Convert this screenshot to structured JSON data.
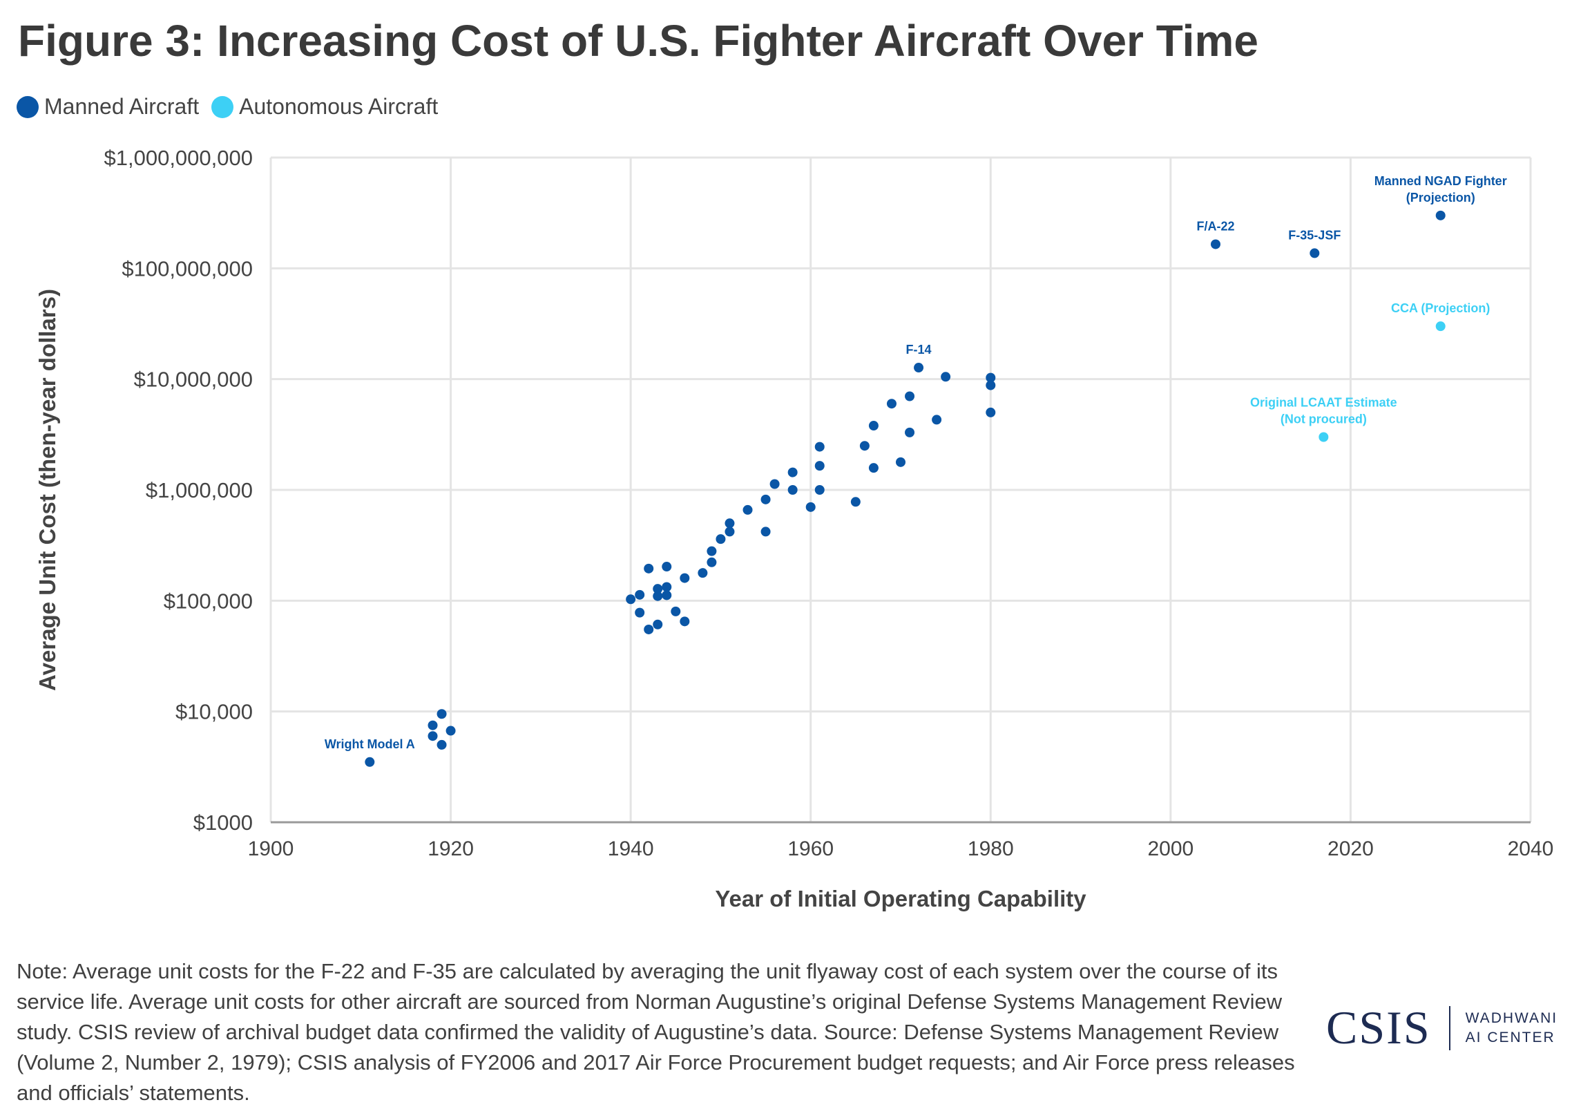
{
  "title": "Figure 3: Increasing Cost of U.S. Fighter Aircraft Over Time",
  "legend": [
    {
      "label": "Manned Aircraft",
      "color": "#0a56a6"
    },
    {
      "label": "Autonomous Aircraft",
      "color": "#3dd0f5"
    }
  ],
  "note": "Note: Average unit costs for the F-22 and F-35 are calculated by averaging the unit flyaway cost of each system over the course of its service life. Average unit costs for other aircraft are sourced from Norman Augustine’s original Defense Systems Management Review study. CSIS review of archival budget data confirmed the validity of Augustine’s data. Source: Defense Systems Management Review (Volume 2, Number 2, 1979); CSIS analysis of FY2006 and 2017 Air Force Procurement budget requests; and Air Force press releases and officials’ statements.",
  "logo": {
    "name": "CSIS",
    "sub_line1": "WADHWANI",
    "sub_line2": "AI CENTER"
  },
  "chart_data": {
    "type": "scatter",
    "title": "Figure 3: Increasing Cost of U.S. Fighter Aircraft Over Time",
    "xlabel": "Year of Initial Operating Capability",
    "ylabel": "Average Unit Cost (then-year dollars)",
    "xlim": [
      1900,
      2040
    ],
    "ylim": [
      1000,
      1000000000
    ],
    "yscale": "log",
    "grid": true,
    "legend_position": "top-left",
    "x_ticks": [
      {
        "value": 1900,
        "label": "1900"
      },
      {
        "value": 1920,
        "label": "1920"
      },
      {
        "value": 1940,
        "label": "1940"
      },
      {
        "value": 1960,
        "label": "1960"
      },
      {
        "value": 1980,
        "label": "1980"
      },
      {
        "value": 2000,
        "label": "2000"
      },
      {
        "value": 2020,
        "label": "2020"
      },
      {
        "value": 2040,
        "label": "2040"
      }
    ],
    "y_ticks": [
      {
        "value": 1000000000,
        "label": "$1,000,000,000"
      },
      {
        "value": 100000000,
        "label": "$100,000,000"
      },
      {
        "value": 10000000,
        "label": "$10,000,000"
      },
      {
        "value": 1000000,
        "label": "$1,000,000"
      },
      {
        "value": 100000,
        "label": "$100,000"
      },
      {
        "value": 10000,
        "label": "$10,000"
      },
      {
        "value": 1000,
        "label": "$1000"
      }
    ],
    "series": [
      {
        "name": "Manned Aircraft",
        "color": "#0a56a6",
        "points": [
          {
            "x": 1911,
            "y": 3500
          },
          {
            "x": 1918,
            "y": 7500
          },
          {
            "x": 1918,
            "y": 6000
          },
          {
            "x": 1919,
            "y": 9500
          },
          {
            "x": 1919,
            "y": 5000
          },
          {
            "x": 1920,
            "y": 6700
          },
          {
            "x": 1940,
            "y": 103000
          },
          {
            "x": 1941,
            "y": 113000
          },
          {
            "x": 1941,
            "y": 78000
          },
          {
            "x": 1942,
            "y": 195000
          },
          {
            "x": 1942,
            "y": 55000
          },
          {
            "x": 1943,
            "y": 128000
          },
          {
            "x": 1943,
            "y": 110000
          },
          {
            "x": 1943,
            "y": 61000
          },
          {
            "x": 1944,
            "y": 203000
          },
          {
            "x": 1944,
            "y": 133000
          },
          {
            "x": 1944,
            "y": 112000
          },
          {
            "x": 1945,
            "y": 80000
          },
          {
            "x": 1946,
            "y": 160000
          },
          {
            "x": 1946,
            "y": 65000
          },
          {
            "x": 1948,
            "y": 178000
          },
          {
            "x": 1949,
            "y": 280000
          },
          {
            "x": 1949,
            "y": 222000
          },
          {
            "x": 1950,
            "y": 360000
          },
          {
            "x": 1951,
            "y": 500000
          },
          {
            "x": 1951,
            "y": 420000
          },
          {
            "x": 1953,
            "y": 660000
          },
          {
            "x": 1955,
            "y": 820000
          },
          {
            "x": 1955,
            "y": 420000
          },
          {
            "x": 1956,
            "y": 1130000
          },
          {
            "x": 1958,
            "y": 1440000
          },
          {
            "x": 1958,
            "y": 1000000
          },
          {
            "x": 1960,
            "y": 700000
          },
          {
            "x": 1961,
            "y": 2450000
          },
          {
            "x": 1961,
            "y": 1650000
          },
          {
            "x": 1961,
            "y": 1000000
          },
          {
            "x": 1965,
            "y": 780000
          },
          {
            "x": 1966,
            "y": 2500000
          },
          {
            "x": 1967,
            "y": 3800000
          },
          {
            "x": 1967,
            "y": 1580000
          },
          {
            "x": 1969,
            "y": 6000000
          },
          {
            "x": 1970,
            "y": 1780000
          },
          {
            "x": 1971,
            "y": 7000000
          },
          {
            "x": 1971,
            "y": 3300000
          },
          {
            "x": 1972,
            "y": 12700000
          },
          {
            "x": 1974,
            "y": 4300000
          },
          {
            "x": 1975,
            "y": 10500000
          },
          {
            "x": 1980,
            "y": 10300000
          },
          {
            "x": 1980,
            "y": 8800000
          },
          {
            "x": 1980,
            "y": 5000000
          },
          {
            "x": 2005,
            "y": 165000000
          },
          {
            "x": 2016,
            "y": 137000000
          },
          {
            "x": 2030,
            "y": 300000000
          }
        ]
      },
      {
        "name": "Autonomous Aircraft",
        "color": "#3dd0f5",
        "points": [
          {
            "x": 2017,
            "y": 3000000
          },
          {
            "x": 2030,
            "y": 30000000
          }
        ]
      }
    ],
    "annotations": [
      {
        "lines": [
          "Wright Model A"
        ],
        "x": 1911,
        "y": 3500,
        "color": "#0a56a6"
      },
      {
        "lines": [
          "F-14"
        ],
        "x": 1972,
        "y": 12700000,
        "color": "#0a56a6"
      },
      {
        "lines": [
          "F/A-22"
        ],
        "x": 2005,
        "y": 165000000,
        "color": "#0a56a6"
      },
      {
        "lines": [
          "F-35-JSF"
        ],
        "x": 2016,
        "y": 137000000,
        "color": "#0a56a6"
      },
      {
        "lines": [
          "Manned NGAD Fighter",
          "(Projection)"
        ],
        "x": 2030,
        "y": 300000000,
        "color": "#0a56a6"
      },
      {
        "lines": [
          "CCA (Projection)"
        ],
        "x": 2030,
        "y": 30000000,
        "color": "#3dd0f5"
      },
      {
        "lines": [
          "Original LCAAT Estimate",
          "(Not procured)"
        ],
        "x": 2017,
        "y": 3000000,
        "color": "#3dd0f5"
      }
    ]
  }
}
